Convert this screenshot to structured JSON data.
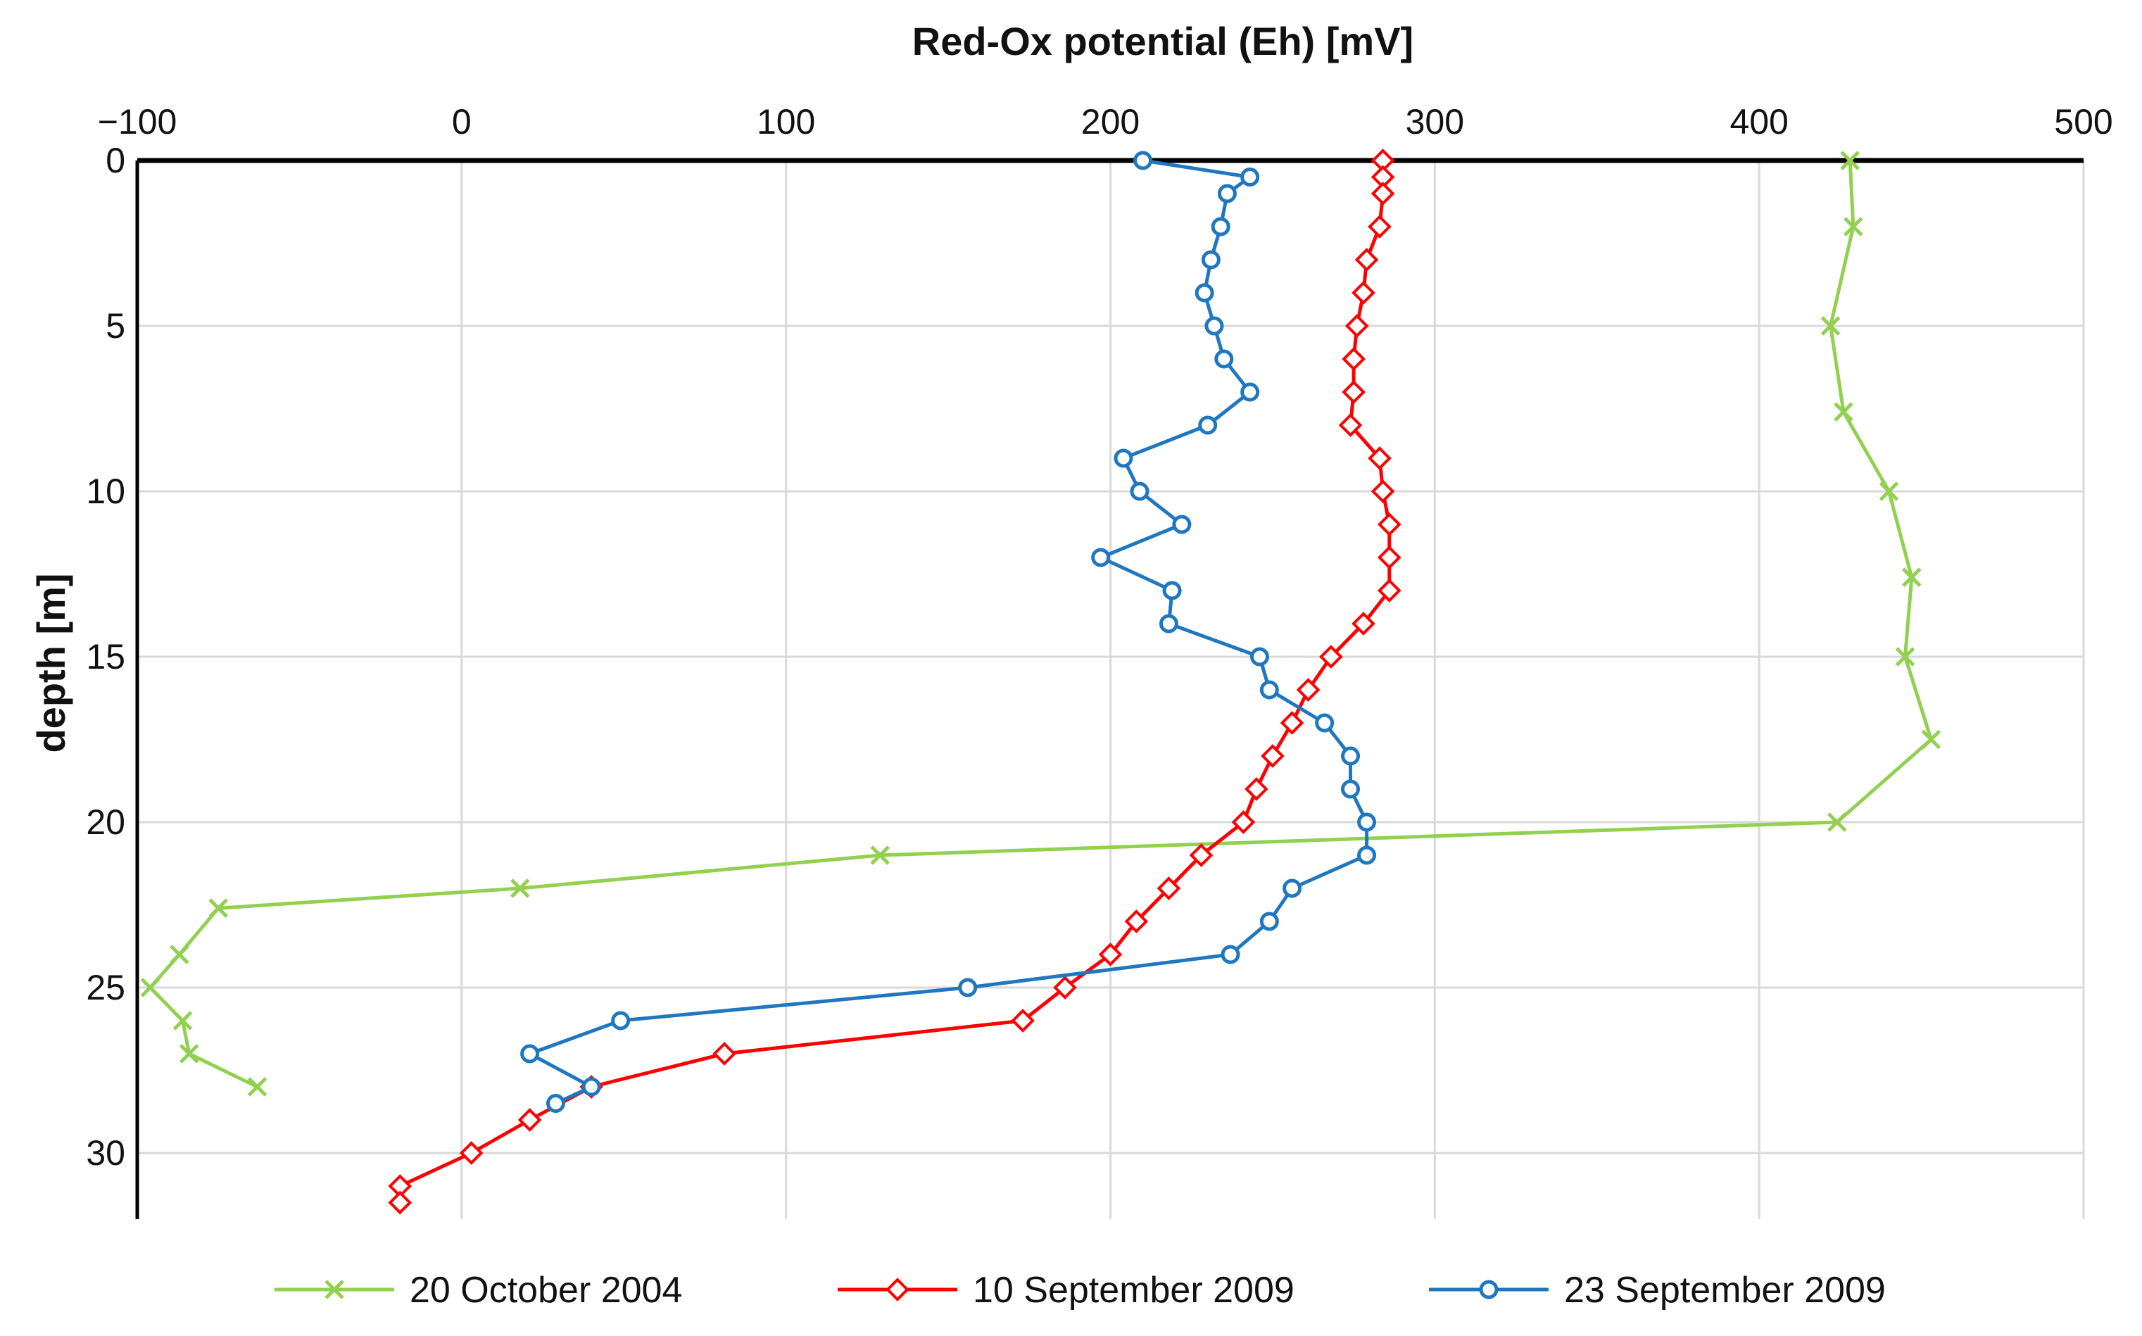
{
  "chart_data": {
    "type": "line",
    "title": "Red-Ox potential (Eh) [mV]",
    "xlabel": "Red-Ox potential (Eh) [mV]",
    "ylabel": "depth [m]",
    "xlim": [
      -100,
      500
    ],
    "ylim": [
      0,
      32
    ],
    "y_inverted": true,
    "x_axis_position": "top",
    "x_ticks": [
      -100,
      0,
      100,
      200,
      300,
      400,
      500
    ],
    "x_tick_labels": [
      "−100",
      "0",
      "100",
      "200",
      "300",
      "400",
      "500"
    ],
    "y_ticks": [
      0,
      5,
      10,
      15,
      20,
      25,
      30
    ],
    "y_tick_labels": [
      "0",
      "5",
      "10",
      "15",
      "20",
      "25",
      "30"
    ],
    "grid": true,
    "legend_position": "bottom",
    "series": [
      {
        "name": "20 October 2004",
        "color": "#92D050",
        "marker": "x",
        "points": [
          [
            428,
            0.0
          ],
          [
            429,
            2.0
          ],
          [
            422,
            5.0
          ],
          [
            426,
            7.6
          ],
          [
            440,
            10.0
          ],
          [
            447,
            12.6
          ],
          [
            445,
            15.0
          ],
          [
            453,
            17.5
          ],
          [
            424,
            20.0
          ],
          [
            129,
            21.0
          ],
          [
            18,
            22.0
          ],
          [
            -75,
            22.6
          ],
          [
            -87,
            24.0
          ],
          [
            -96,
            25.0
          ],
          [
            -86,
            26.0
          ],
          [
            -84,
            27.0
          ],
          [
            -63,
            28.0
          ]
        ]
      },
      {
        "name": "10 September 2009",
        "color": "#FF0000",
        "marker": "diamond",
        "points": [
          [
            284,
            0.0
          ],
          [
            284,
            0.5
          ],
          [
            284,
            1.0
          ],
          [
            283,
            2.0
          ],
          [
            279,
            3.0
          ],
          [
            278,
            4.0
          ],
          [
            276,
            5.0
          ],
          [
            275,
            6.0
          ],
          [
            275,
            7.0
          ],
          [
            274,
            8.0
          ],
          [
            283,
            9.0
          ],
          [
            284,
            10.0
          ],
          [
            286,
            11.0
          ],
          [
            286,
            12.0
          ],
          [
            286,
            13.0
          ],
          [
            278,
            14.0
          ],
          [
            268,
            15.0
          ],
          [
            261,
            16.0
          ],
          [
            256,
            17.0
          ],
          [
            250,
            18.0
          ],
          [
            245,
            19.0
          ],
          [
            241,
            20.0
          ],
          [
            228,
            21.0
          ],
          [
            218,
            22.0
          ],
          [
            208,
            23.0
          ],
          [
            200,
            24.0
          ],
          [
            186,
            25.0
          ],
          [
            173,
            26.0
          ],
          [
            81,
            27.0
          ],
          [
            40,
            28.0
          ],
          [
            21,
            29.0
          ],
          [
            3,
            30.0
          ],
          [
            -19,
            31.0
          ],
          [
            -19,
            31.5
          ]
        ]
      },
      {
        "name": "23 September 2009",
        "color": "#1F77C0",
        "marker": "circle",
        "points": [
          [
            210,
            0.0
          ],
          [
            243,
            0.5
          ],
          [
            236,
            1.0
          ],
          [
            234,
            2.0
          ],
          [
            231,
            3.0
          ],
          [
            229,
            4.0
          ],
          [
            232,
            5.0
          ],
          [
            235,
            6.0
          ],
          [
            243,
            7.0
          ],
          [
            230,
            8.0
          ],
          [
            204,
            9.0
          ],
          [
            209,
            10.0
          ],
          [
            222,
            11.0
          ],
          [
            197,
            12.0
          ],
          [
            219,
            13.0
          ],
          [
            218,
            14.0
          ],
          [
            246,
            15.0
          ],
          [
            249,
            16.0
          ],
          [
            266,
            17.0
          ],
          [
            274,
            18.0
          ],
          [
            274,
            19.0
          ],
          [
            279,
            20.0
          ],
          [
            279,
            21.0
          ],
          [
            256,
            22.0
          ],
          [
            249,
            23.0
          ],
          [
            237,
            24.0
          ],
          [
            156,
            25.0
          ],
          [
            49,
            26.0
          ],
          [
            21,
            27.0
          ],
          [
            40,
            28.0
          ],
          [
            29,
            28.5
          ]
        ]
      }
    ]
  }
}
